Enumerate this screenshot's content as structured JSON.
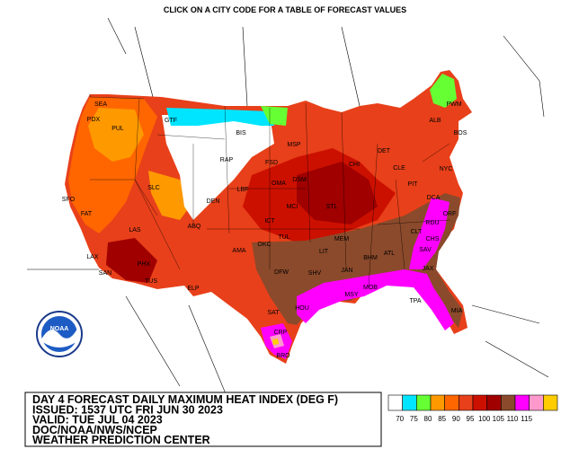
{
  "header": "CLICK ON A CITY CODE FOR A TABLE OF FORECAST VALUES",
  "logo": "NOAA",
  "title_block": [
    "DAY 4 FORECAST DAILY MAXIMUM HEAT INDEX (DEG F)",
    "ISSUED: 1537 UTC FRI JUN 30 2023",
    "VALID: TUE JUL 04 2023",
    "DOC/NOAA/NWS/NCEP",
    "WEATHER PREDICTION CENTER"
  ],
  "legend": {
    "colors": [
      "#ffffff",
      "#00e5ff",
      "#66ff33",
      "#ff9900",
      "#ff6600",
      "#e8401a",
      "#cc1000",
      "#a00000",
      "#8b4a2b",
      "#ff00ff",
      "#ff99cc",
      "#ffcc00"
    ],
    "labels": [
      70,
      75,
      80,
      85,
      90,
      95,
      100,
      105,
      110,
      115
    ]
  },
  "cities": [
    "SEA",
    "PDX",
    "PUL",
    "GTF",
    "BIS",
    "RAP",
    "MSP",
    "FSD",
    "SLC",
    "DEN",
    "LBF",
    "OMA",
    "DSM",
    "SFO",
    "FAT",
    "LAX",
    "SAN",
    "LAS",
    "PHX",
    "TUS",
    "ABQ",
    "ELP",
    "AMA",
    "ICT",
    "MCI",
    "STL",
    "CHI",
    "DET",
    "CLE",
    "PIT",
    "NYC",
    "BOS",
    "ALB",
    "PWM",
    "DCA",
    "ORF",
    "RDU",
    "CLT",
    "ATL",
    "BHM",
    "MEM",
    "OKC",
    "TUL",
    "LIT",
    "DFW",
    "SHV",
    "JAN",
    "MOB",
    "MSY",
    "HOU",
    "SAT",
    "CRP",
    "BRO",
    "TPA",
    "MIA",
    "JAX",
    "CHS",
    "SAV"
  ]
}
